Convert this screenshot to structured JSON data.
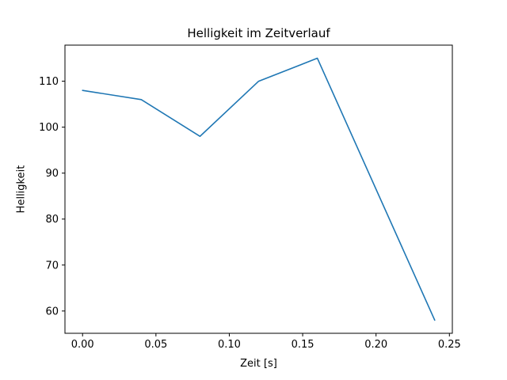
{
  "figure": {
    "background": "#ffffff"
  },
  "chart_data": {
    "type": "line",
    "title": "Helligkeit im Zeitverlauf",
    "xlabel": "Zeit [s]",
    "ylabel": "Helligkeit",
    "x": [
      0.0,
      0.04,
      0.08,
      0.12,
      0.16,
      0.24
    ],
    "y": [
      108,
      106,
      98,
      110,
      115,
      58
    ],
    "xlim": [
      -0.012,
      0.252
    ],
    "ylim": [
      55.15,
      117.85
    ],
    "xtick_values": [
      0.0,
      0.05,
      0.1,
      0.15,
      0.2,
      0.25
    ],
    "xtick_labels": [
      "0.00",
      "0.05",
      "0.10",
      "0.15",
      "0.20",
      "0.25"
    ],
    "ytick_values": [
      60,
      70,
      80,
      90,
      100,
      110
    ],
    "ytick_labels": [
      "60",
      "70",
      "80",
      "90",
      "100",
      "110"
    ],
    "line_color": "#1f77b4",
    "spine_color": "#000000",
    "grid": false,
    "legend_position": "none"
  }
}
